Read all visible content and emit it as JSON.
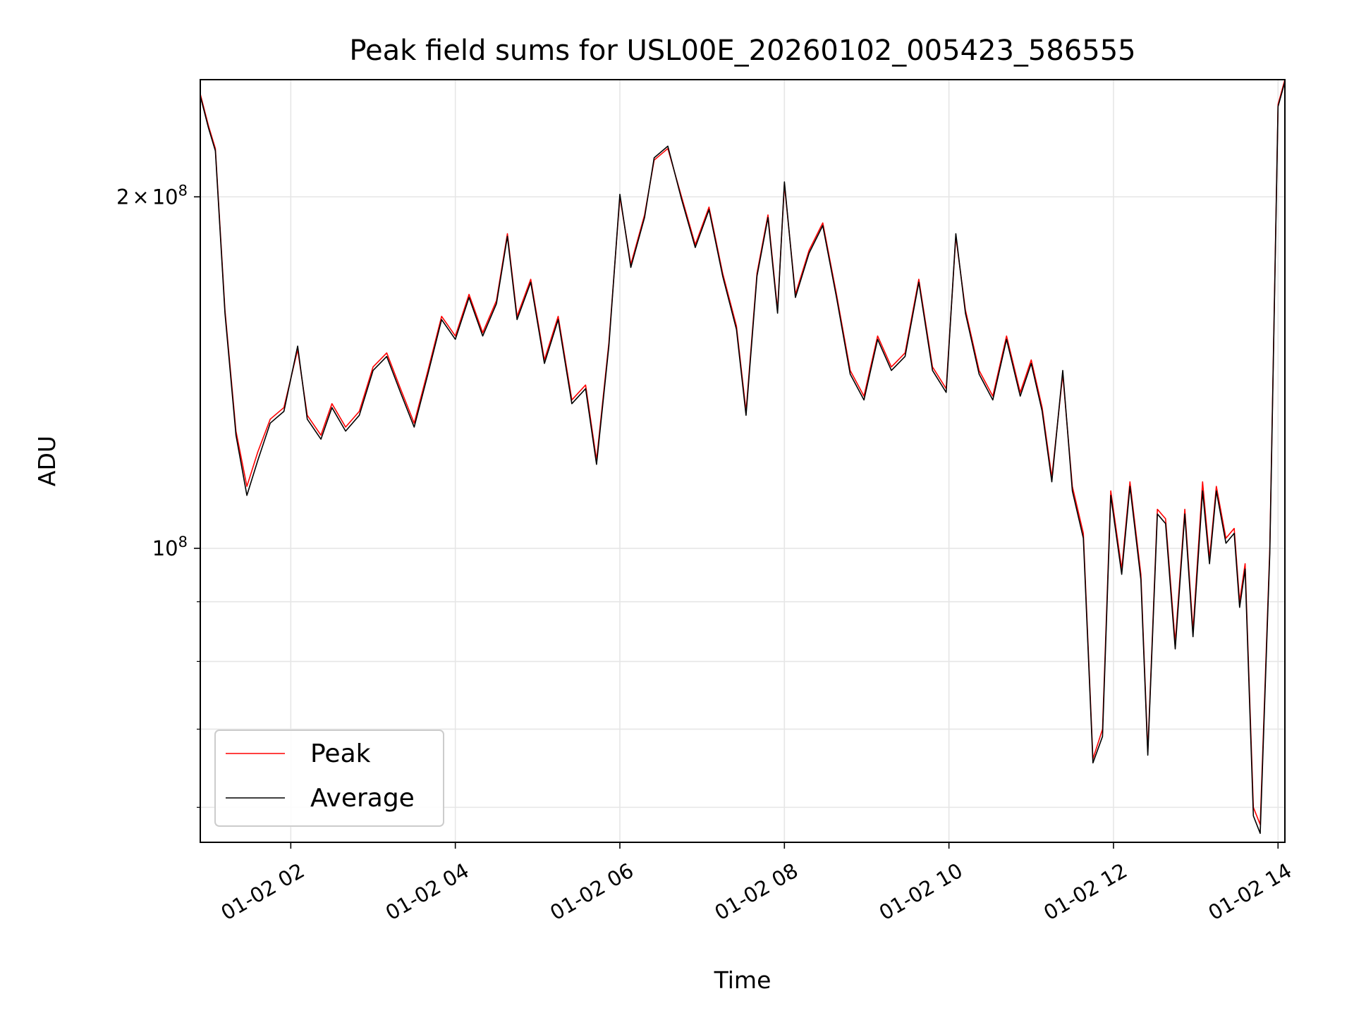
{
  "chart_data": {
    "type": "line",
    "title": "Peak field sums for USL00E_20260102_005423_586555",
    "xlabel": "Time",
    "ylabel": "ADU",
    "y_scale": "log",
    "ylim": [
      56000000,
      252000000
    ],
    "xlim": [
      "01-02 00:54",
      "01-02 14:05"
    ],
    "x_tick_labels": [
      "01-02 02",
      "01-02 04",
      "01-02 06",
      "01-02 08",
      "01-02 10",
      "01-02 12",
      "01-02 14"
    ],
    "y_tick_labels": [
      {
        "value": 200000000,
        "base": "2",
        "op": "×",
        "mant": "10",
        "exp": "8"
      },
      {
        "value": 100000000,
        "base": "",
        "op": "",
        "mant": "10",
        "exp": "8"
      }
    ],
    "grid": true,
    "legend_position": "lower-left",
    "series": [
      {
        "name": "Peak",
        "color": "#ff0000",
        "points": [
          [
            "01-02 00:54",
            245000000
          ],
          [
            "01-02 01:00",
            230000000
          ],
          [
            "01-02 01:05",
            220000000
          ],
          [
            "01-02 01:12",
            160000000
          ],
          [
            "01-02 01:20",
            126000000
          ],
          [
            "01-02 01:28",
            113000000
          ],
          [
            "01-02 01:36",
            121000000
          ],
          [
            "01-02 01:45",
            129000000
          ],
          [
            "01-02 01:55",
            132000000
          ],
          [
            "01-02 02:05",
            148000000
          ],
          [
            "01-02 02:12",
            130000000
          ],
          [
            "01-02 02:22",
            125000000
          ],
          [
            "01-02 02:30",
            133000000
          ],
          [
            "01-02 02:40",
            127000000
          ],
          [
            "01-02 02:50",
            131000000
          ],
          [
            "01-02 03:00",
            143000000
          ],
          [
            "01-02 03:10",
            147000000
          ],
          [
            "01-02 03:20",
            137000000
          ],
          [
            "01-02 03:30",
            128000000
          ],
          [
            "01-02 03:40",
            142000000
          ],
          [
            "01-02 03:50",
            158000000
          ],
          [
            "01-02 04:00",
            152000000
          ],
          [
            "01-02 04:10",
            165000000
          ],
          [
            "01-02 04:20",
            153000000
          ],
          [
            "01-02 04:30",
            163000000
          ],
          [
            "01-02 04:38",
            186000000
          ],
          [
            "01-02 04:45",
            158000000
          ],
          [
            "01-02 04:55",
            170000000
          ],
          [
            "01-02 05:05",
            145000000
          ],
          [
            "01-02 05:15",
            158000000
          ],
          [
            "01-02 05:25",
            134000000
          ],
          [
            "01-02 05:35",
            138000000
          ],
          [
            "01-02 05:43",
            119000000
          ],
          [
            "01-02 05:52",
            150000000
          ],
          [
            "01-02 06:00",
            200000000
          ],
          [
            "01-02 06:08",
            175000000
          ],
          [
            "01-02 06:18",
            193000000
          ],
          [
            "01-02 06:25",
            215000000
          ],
          [
            "01-02 06:35",
            220000000
          ],
          [
            "01-02 06:45",
            200000000
          ],
          [
            "01-02 06:55",
            182000000
          ],
          [
            "01-02 07:05",
            196000000
          ],
          [
            "01-02 07:15",
            172000000
          ],
          [
            "01-02 07:25",
            155000000
          ],
          [
            "01-02 07:32",
            131000000
          ],
          [
            "01-02 07:40",
            172000000
          ],
          [
            "01-02 07:48",
            193000000
          ],
          [
            "01-02 07:55",
            160000000
          ],
          [
            "01-02 08:00",
            205000000
          ],
          [
            "01-02 08:08",
            165000000
          ],
          [
            "01-02 08:18",
            180000000
          ],
          [
            "01-02 08:28",
            190000000
          ],
          [
            "01-02 08:38",
            165000000
          ],
          [
            "01-02 08:48",
            142000000
          ],
          [
            "01-02 08:58",
            135000000
          ],
          [
            "01-02 09:08",
            152000000
          ],
          [
            "01-02 09:18",
            143000000
          ],
          [
            "01-02 09:28",
            147000000
          ],
          [
            "01-02 09:38",
            170000000
          ],
          [
            "01-02 09:48",
            143000000
          ],
          [
            "01-02 09:58",
            137000000
          ],
          [
            "01-02 10:05",
            185000000
          ],
          [
            "01-02 10:12",
            160000000
          ],
          [
            "01-02 10:22",
            142000000
          ],
          [
            "01-02 10:32",
            135000000
          ],
          [
            "01-02 10:42",
            152000000
          ],
          [
            "01-02 10:52",
            136000000
          ],
          [
            "01-02 11:00",
            145000000
          ],
          [
            "01-02 11:08",
            132000000
          ],
          [
            "01-02 11:15",
            115000000
          ],
          [
            "01-02 11:23",
            141000000
          ],
          [
            "01-02 11:30",
            113000000
          ],
          [
            "01-02 11:38",
            103000000
          ],
          [
            "01-02 11:45",
            66000000
          ],
          [
            "01-02 11:52",
            70000000
          ],
          [
            "01-02 11:58",
            112000000
          ],
          [
            "01-02 12:06",
            96000000
          ],
          [
            "01-02 12:12",
            114000000
          ],
          [
            "01-02 12:20",
            95000000
          ],
          [
            "01-02 12:25",
            67000000
          ],
          [
            "01-02 12:32",
            108000000
          ],
          [
            "01-02 12:38",
            106000000
          ],
          [
            "01-02 12:45",
            83000000
          ],
          [
            "01-02 12:52",
            108000000
          ],
          [
            "01-02 12:58",
            85000000
          ],
          [
            "01-02 13:05",
            114000000
          ],
          [
            "01-02 13:10",
            98000000
          ],
          [
            "01-02 13:15",
            113000000
          ],
          [
            "01-02 13:22",
            102000000
          ],
          [
            "01-02 13:28",
            104000000
          ],
          [
            "01-02 13:32",
            90000000
          ],
          [
            "01-02 13:36",
            97000000
          ],
          [
            "01-02 13:42",
            60000000
          ],
          [
            "01-02 13:47",
            58000000
          ],
          [
            "01-02 13:54",
            100000000
          ],
          [
            "01-02 14:00",
            240000000
          ],
          [
            "01-02 14:05",
            252000000
          ]
        ]
      },
      {
        "name": "Average",
        "color": "#000000",
        "points": [
          [
            "01-02 00:54",
            244000000
          ],
          [
            "01-02 01:00",
            229000000
          ],
          [
            "01-02 01:05",
            219000000
          ],
          [
            "01-02 01:12",
            159000000
          ],
          [
            "01-02 01:20",
            125000000
          ],
          [
            "01-02 01:28",
            111000000
          ],
          [
            "01-02 01:36",
            119000000
          ],
          [
            "01-02 01:45",
            128000000
          ],
          [
            "01-02 01:55",
            131000000
          ],
          [
            "01-02 02:05",
            149000000
          ],
          [
            "01-02 02:12",
            129000000
          ],
          [
            "01-02 02:22",
            124000000
          ],
          [
            "01-02 02:30",
            132000000
          ],
          [
            "01-02 02:40",
            126000000
          ],
          [
            "01-02 02:50",
            130000000
          ],
          [
            "01-02 03:00",
            142000000
          ],
          [
            "01-02 03:10",
            146000000
          ],
          [
            "01-02 03:20",
            136000000
          ],
          [
            "01-02 03:30",
            127000000
          ],
          [
            "01-02 03:40",
            141000000
          ],
          [
            "01-02 03:50",
            157000000
          ],
          [
            "01-02 04:00",
            151000000
          ],
          [
            "01-02 04:10",
            164000000
          ],
          [
            "01-02 04:20",
            152000000
          ],
          [
            "01-02 04:30",
            162000000
          ],
          [
            "01-02 04:38",
            185000000
          ],
          [
            "01-02 04:45",
            157000000
          ],
          [
            "01-02 04:55",
            169000000
          ],
          [
            "01-02 05:05",
            144000000
          ],
          [
            "01-02 05:15",
            157000000
          ],
          [
            "01-02 05:25",
            133000000
          ],
          [
            "01-02 05:35",
            137000000
          ],
          [
            "01-02 05:43",
            118000000
          ],
          [
            "01-02 05:52",
            149000000
          ],
          [
            "01-02 06:00",
            201000000
          ],
          [
            "01-02 06:08",
            174000000
          ],
          [
            "01-02 06:18",
            192000000
          ],
          [
            "01-02 06:25",
            216000000
          ],
          [
            "01-02 06:35",
            221000000
          ],
          [
            "01-02 06:45",
            199000000
          ],
          [
            "01-02 06:55",
            181000000
          ],
          [
            "01-02 07:05",
            195000000
          ],
          [
            "01-02 07:15",
            171000000
          ],
          [
            "01-02 07:25",
            154000000
          ],
          [
            "01-02 07:32",
            130000000
          ],
          [
            "01-02 07:40",
            171000000
          ],
          [
            "01-02 07:48",
            192000000
          ],
          [
            "01-02 07:55",
            159000000
          ],
          [
            "01-02 08:00",
            206000000
          ],
          [
            "01-02 08:08",
            164000000
          ],
          [
            "01-02 08:18",
            179000000
          ],
          [
            "01-02 08:28",
            189000000
          ],
          [
            "01-02 08:38",
            164000000
          ],
          [
            "01-02 08:48",
            141000000
          ],
          [
            "01-02 08:58",
            134000000
          ],
          [
            "01-02 09:08",
            151000000
          ],
          [
            "01-02 09:18",
            142000000
          ],
          [
            "01-02 09:28",
            146000000
          ],
          [
            "01-02 09:38",
            169000000
          ],
          [
            "01-02 09:48",
            142000000
          ],
          [
            "01-02 09:58",
            136000000
          ],
          [
            "01-02 10:05",
            186000000
          ],
          [
            "01-02 10:12",
            159000000
          ],
          [
            "01-02 10:22",
            141000000
          ],
          [
            "01-02 10:32",
            134000000
          ],
          [
            "01-02 10:42",
            151000000
          ],
          [
            "01-02 10:52",
            135000000
          ],
          [
            "01-02 11:00",
            144000000
          ],
          [
            "01-02 11:08",
            131000000
          ],
          [
            "01-02 11:15",
            114000000
          ],
          [
            "01-02 11:23",
            142000000
          ],
          [
            "01-02 11:30",
            112000000
          ],
          [
            "01-02 11:38",
            102000000
          ],
          [
            "01-02 11:45",
            65500000
          ],
          [
            "01-02 11:52",
            69000000
          ],
          [
            "01-02 11:58",
            111000000
          ],
          [
            "01-02 12:06",
            95000000
          ],
          [
            "01-02 12:12",
            113000000
          ],
          [
            "01-02 12:20",
            94000000
          ],
          [
            "01-02 12:25",
            66500000
          ],
          [
            "01-02 12:32",
            107000000
          ],
          [
            "01-02 12:38",
            105000000
          ],
          [
            "01-02 12:45",
            82000000
          ],
          [
            "01-02 12:52",
            107000000
          ],
          [
            "01-02 12:58",
            84000000
          ],
          [
            "01-02 13:05",
            112000000
          ],
          [
            "01-02 13:10",
            97000000
          ],
          [
            "01-02 13:15",
            112000000
          ],
          [
            "01-02 13:22",
            101000000
          ],
          [
            "01-02 13:28",
            103000000
          ],
          [
            "01-02 13:32",
            89000000
          ],
          [
            "01-02 13:36",
            96000000
          ],
          [
            "01-02 13:42",
            59000000
          ],
          [
            "01-02 13:47",
            57000000
          ],
          [
            "01-02 13:54",
            99000000
          ],
          [
            "01-02 14:00",
            239000000
          ],
          [
            "01-02 14:05",
            251000000
          ]
        ]
      }
    ]
  }
}
